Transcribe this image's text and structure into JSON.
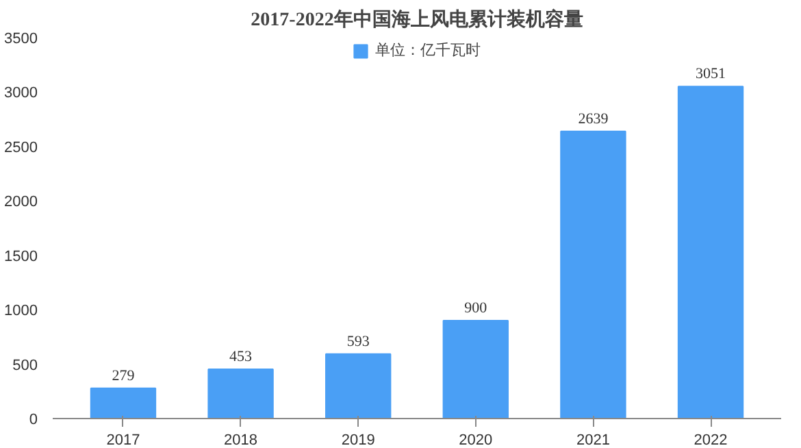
{
  "chart_data": {
    "type": "bar",
    "title": "2017-2022年中国海上风电累计装机容量",
    "categories": [
      "2017",
      "2018",
      "2019",
      "2020",
      "2021",
      "2022"
    ],
    "series": [
      {
        "name": "单位：亿千瓦时",
        "color": "#4a9ff5",
        "values": [
          279,
          453,
          593,
          900,
          2639,
          3051
        ]
      }
    ],
    "ylim": [
      0,
      3500
    ],
    "yticks": [
      0,
      500,
      1000,
      1500,
      2000,
      2500,
      3000,
      3500
    ],
    "data_labels": true,
    "legend": "top",
    "grid": false
  }
}
